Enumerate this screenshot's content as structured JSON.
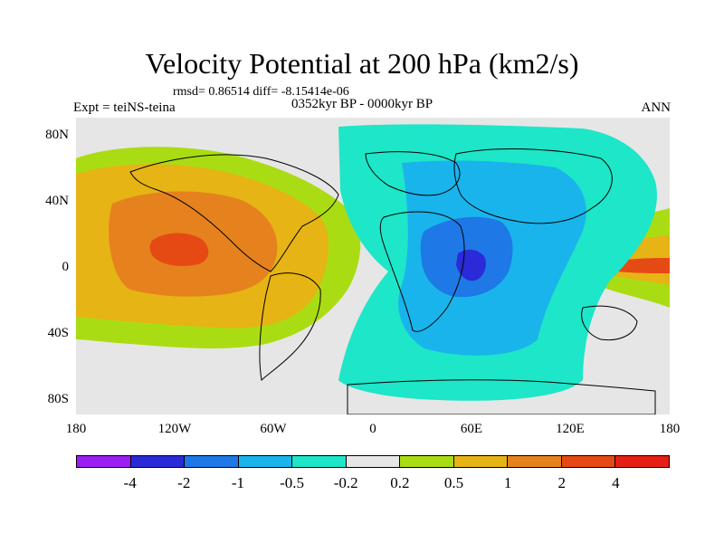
{
  "title": "Velocity Potential at 200 hPa (km2/s)",
  "stats": "rmsd= 0.86514 diff= -8.15414e-06",
  "left_label": "Expt = teiNS-teina",
  "center_label": "0352kyr BP - 0000kyr BP",
  "right_label": "ANN",
  "lat_labels": [
    "80N",
    "40N",
    "0",
    "40S",
    "80S"
  ],
  "lon_labels": [
    "180",
    "120W",
    "60W",
    "0",
    "60E",
    "120E",
    "180"
  ],
  "colorbar": {
    "colors": [
      "#9a1ff0",
      "#2a2ad8",
      "#1e78e6",
      "#19b4ec",
      "#1ee6c8",
      "#e6e6e6",
      "#aadc14",
      "#e6b414",
      "#e6821e",
      "#e64a14",
      "#e61e14"
    ],
    "labels": [
      "-4",
      "-2",
      "-1",
      "-0.5",
      "-0.2",
      "0.2",
      "0.5",
      "1",
      "2",
      "4"
    ]
  },
  "colors": {
    "land_outline": "#000000",
    "neutral": "#e6e6e6"
  }
}
